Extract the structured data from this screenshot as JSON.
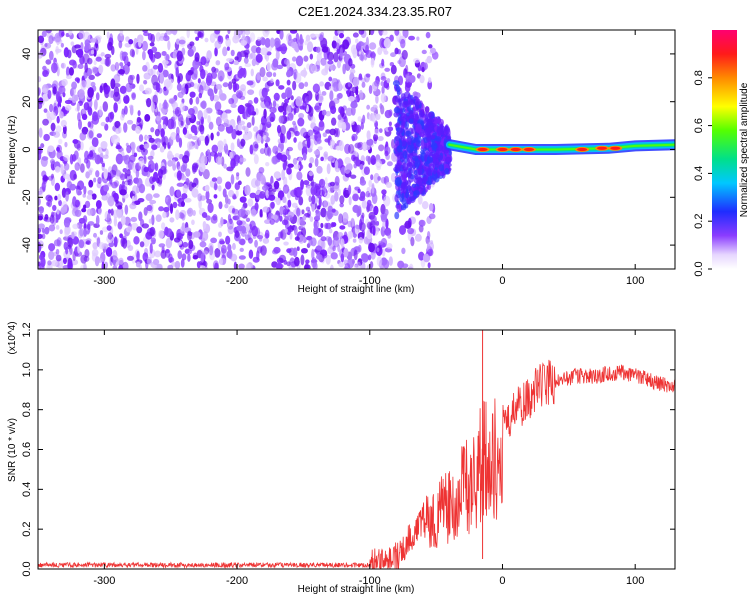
{
  "figure": {
    "title": "C2E1.2024.334.23.35.R07"
  },
  "chart_data": [
    {
      "type": "heatmap",
      "xlabel": "Height of straight line (km)",
      "ylabel": "Frequency (Hz)",
      "xlim": [
        -350,
        130
      ],
      "ylim": [
        -50,
        50
      ],
      "x_ticks": [
        "-300",
        "-200",
        "-100",
        "0",
        "100"
      ],
      "y_ticks": [
        "-40",
        "-20",
        "0",
        "20",
        "40"
      ],
      "colorbar": {
        "label": "Normalized spectral amplitude",
        "range": [
          0,
          1
        ],
        "ticks": [
          "0.0",
          "0.2",
          "0.4",
          "0.6",
          "0.8"
        ],
        "colormap": "rainbow"
      },
      "description_values": {
        "noise_region_x": [
          -350,
          -80
        ],
        "transition_x": [
          -80,
          -40
        ],
        "signal_line_frequency": [
          [
            -40,
            2
          ],
          [
            -20,
            0
          ],
          [
            0,
            0
          ],
          [
            40,
            0
          ],
          [
            80,
            0.5
          ],
          [
            100,
            1.5
          ],
          [
            130,
            2
          ]
        ],
        "peak_patches": [
          [
            -15,
            0
          ],
          [
            0,
            0
          ],
          [
            10,
            0
          ],
          [
            20,
            0
          ],
          [
            60,
            0
          ],
          [
            75,
            0.5
          ],
          [
            85,
            0.5
          ]
        ]
      }
    },
    {
      "type": "line",
      "xlabel": "Height of straight line (km)",
      "ylabel": "SNR (10 * v/v)",
      "y_multiplier": "(x10^4)",
      "xlim": [
        -350,
        130
      ],
      "ylim": [
        0,
        1.2
      ],
      "x_ticks": [
        "-300",
        "-200",
        "-100",
        "0",
        "100"
      ],
      "y_ticks": [
        "0.0",
        "0.2",
        "0.4",
        "0.6",
        "0.8",
        "1.0",
        "1.2"
      ],
      "color": "#ee3333",
      "series": [
        {
          "x": [
            -350,
            -100,
            -90,
            -80,
            -70,
            -60,
            -50,
            -40,
            -30,
            -20,
            -15,
            -10,
            0,
            10,
            20,
            30,
            40,
            50,
            60,
            70,
            80,
            90,
            100,
            110,
            120,
            130
          ],
          "y": [
            0.02,
            0.02,
            0.03,
            0.06,
            0.15,
            0.25,
            0.3,
            0.36,
            0.45,
            0.52,
            0.6,
            0.58,
            0.72,
            0.8,
            0.86,
            0.92,
            0.95,
            0.96,
            0.97,
            0.97,
            0.98,
            0.99,
            0.97,
            0.95,
            0.93,
            0.92
          ]
        }
      ]
    }
  ]
}
